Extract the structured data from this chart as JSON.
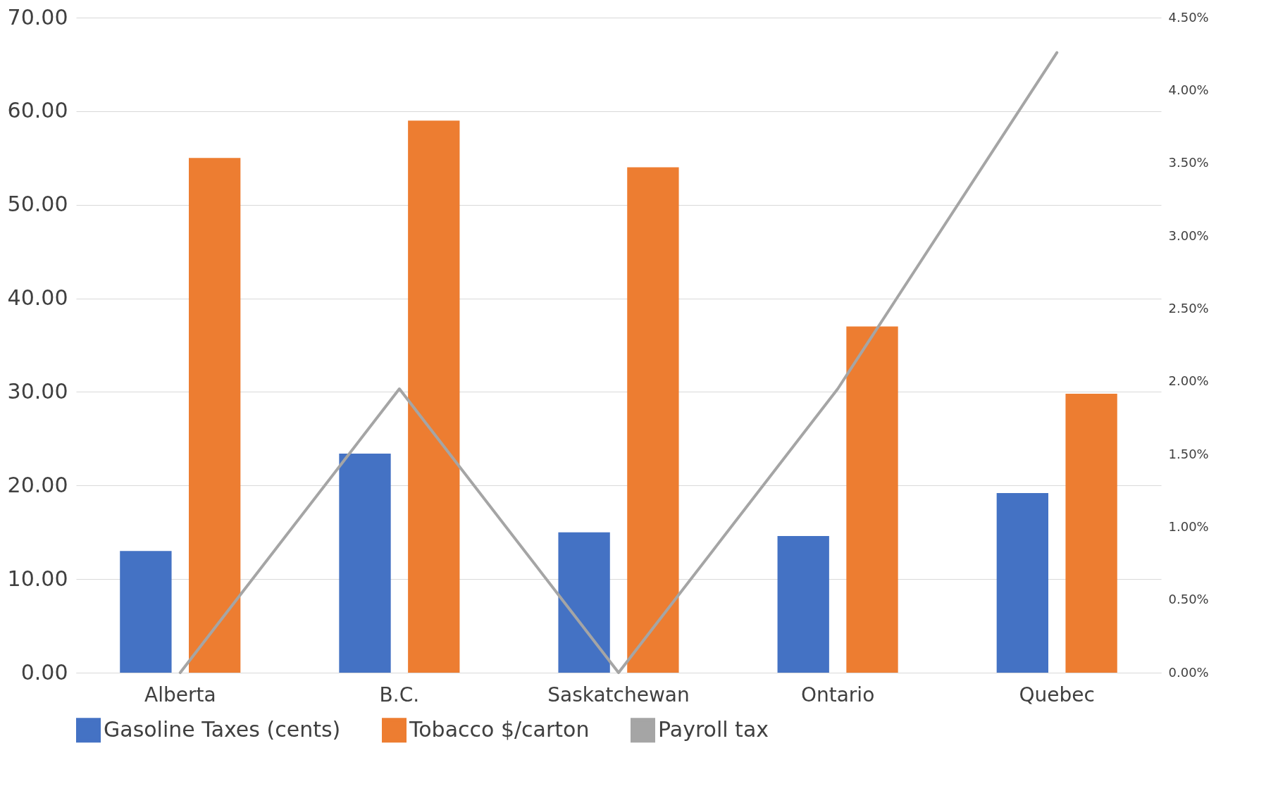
{
  "chart_data": {
    "type": "bar",
    "categories": [
      "Alberta",
      "B.C.",
      "Saskatchewan",
      "Ontario",
      "Quebec"
    ],
    "series": [
      {
        "name": "Gasoline Taxes (cents)",
        "color": "#4472c4",
        "values": [
          13.0,
          23.4,
          15.0,
          14.6,
          19.2
        ]
      },
      {
        "name": "Tobacco $/carton",
        "color": "#ed7d31",
        "values": [
          55.0,
          59.0,
          54.0,
          37.0,
          29.8
        ]
      },
      {
        "name": "Payroll tax",
        "color": "#a5a5a5",
        "type": "line",
        "axis": "y2",
        "values": [
          0.0,
          1.95,
          0.0,
          1.95,
          4.26
        ]
      }
    ],
    "ylim": [
      0,
      70
    ],
    "yticks": [
      {
        "value": 0,
        "label": "0.00"
      },
      {
        "value": 10,
        "label": "10.00"
      },
      {
        "value": 20,
        "label": "20.00"
      },
      {
        "value": 30,
        "label": "30.00"
      },
      {
        "value": 40,
        "label": "40.00"
      },
      {
        "value": 50,
        "label": "50.00"
      },
      {
        "value": 60,
        "label": "60.00"
      },
      {
        "value": 70,
        "label": "70.00"
      }
    ],
    "y2lim": [
      0,
      4.5
    ],
    "y2ticks": [
      {
        "value": 0,
        "label": "0.00%"
      },
      {
        "value": 0.5,
        "label": "0.50%"
      },
      {
        "value": 1,
        "label": "1.00%"
      },
      {
        "value": 1.5,
        "label": "1.50%"
      },
      {
        "value": 2,
        "label": "2.00%"
      },
      {
        "value": 2.5,
        "label": "2.50%"
      },
      {
        "value": 3,
        "label": "3.00%"
      },
      {
        "value": 3.5,
        "label": "3.50%"
      },
      {
        "value": 4,
        "label": "4.00%"
      },
      {
        "value": 4.5,
        "label": "4.50%"
      }
    ],
    "grid": "y",
    "legend": "bottom"
  }
}
